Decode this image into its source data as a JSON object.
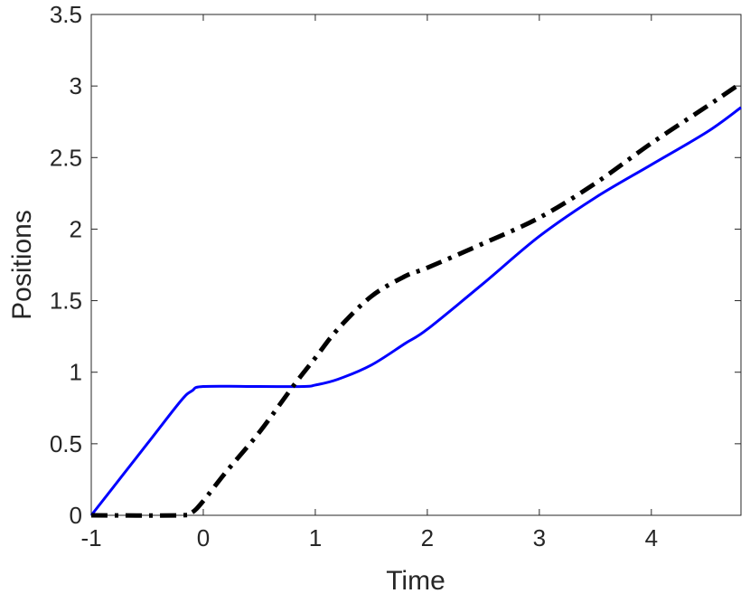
{
  "chart_data": {
    "type": "line",
    "title": "",
    "xlabel": "Time",
    "ylabel": "Positions",
    "xlim": [
      -1,
      4.8
    ],
    "ylim": [
      0,
      3.5
    ],
    "xticks": [
      -1,
      0,
      1,
      2,
      3,
      4
    ],
    "xtick_labels": [
      "-1",
      "0",
      "1",
      "2",
      "3",
      "4"
    ],
    "yticks": [
      0,
      0.5,
      1,
      1.5,
      2,
      2.5,
      3,
      3.5
    ],
    "ytick_labels": [
      "0",
      "0.5",
      "1",
      "1.5",
      "2",
      "2.5",
      "3",
      "3.5"
    ],
    "grid": false,
    "series": [
      {
        "color": "#0000ff",
        "style": "solid",
        "x": [
          -1,
          -0.5,
          -0.2,
          -0.1,
          0,
          0.5,
          0.9,
          1.0,
          1.2,
          1.5,
          1.8,
          2,
          2.5,
          3,
          3.5,
          4,
          4.5,
          4.8
        ],
        "y": [
          0,
          0.5,
          0.8,
          0.87,
          0.9,
          0.9,
          0.9,
          0.91,
          0.95,
          1.05,
          1.2,
          1.3,
          1.62,
          1.95,
          2.22,
          2.45,
          2.68,
          2.85
        ]
      },
      {
        "color": "#000000",
        "style": "dash-dot",
        "x": [
          -1,
          -0.2,
          -0.1,
          0,
          0.2,
          0.5,
          0.8,
          1,
          1.2,
          1.5,
          1.8,
          2,
          2.5,
          3,
          3.5,
          4,
          4.5,
          4.8
        ],
        "y": [
          0,
          0,
          0.02,
          0.1,
          0.3,
          0.58,
          0.9,
          1.1,
          1.3,
          1.53,
          1.67,
          1.73,
          1.9,
          2.08,
          2.32,
          2.6,
          2.86,
          3.02
        ]
      }
    ]
  }
}
